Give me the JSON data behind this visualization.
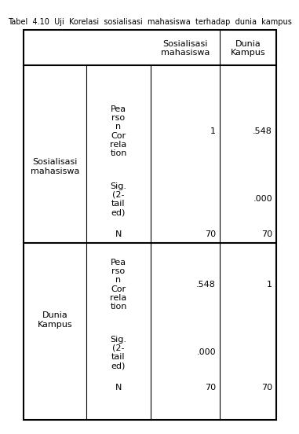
{
  "header_col3": "Sosialisasi\nmahasiswa",
  "header_col4": "Dunia\nKampus",
  "row_label1": "Sosialisasi\nmahasiswa",
  "row_label2": "Dunia\nKampus",
  "sub_labels": [
    "Pea\nrso\nn\nCor\nrela\ntion",
    "Sig.\n(2-\ntail\ned)",
    "N",
    "Pea\nrso\nn\nCor\nrela\ntion",
    "Sig.\n(2-\ntail\ned)",
    "N"
  ],
  "values": [
    [
      "1",
      ".548"
    ],
    [
      "",
      ".000"
    ],
    [
      "70",
      "70"
    ],
    [
      ".548",
      "1"
    ],
    [
      ".000",
      ""
    ],
    [
      "70",
      "70"
    ]
  ],
  "bg_color": "#ffffff",
  "text_color": "#000000",
  "border_color": "#000000",
  "font_size": 8.0,
  "title": "Tabel  4.10  Uji  Korelasi  sosialisasi  mahasiswa  terhadap  dunia  kampus"
}
